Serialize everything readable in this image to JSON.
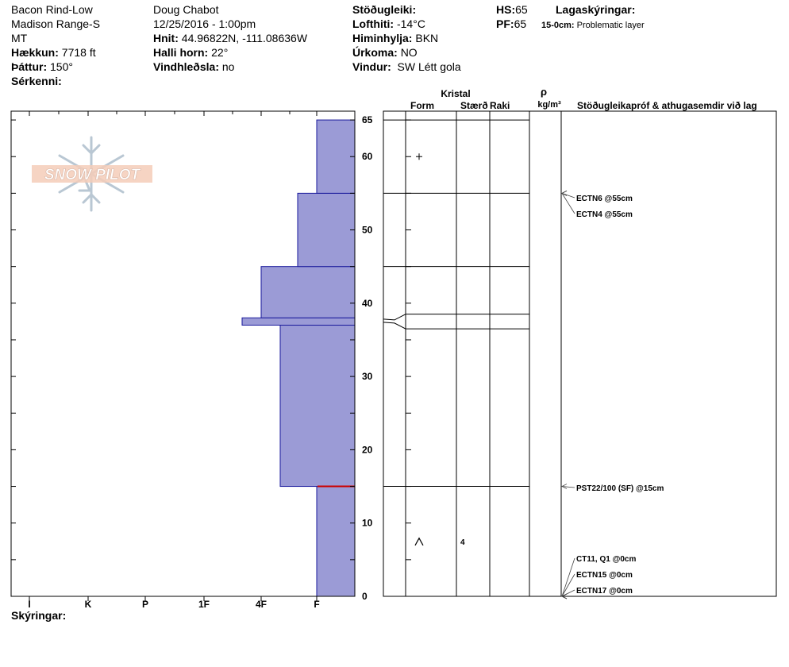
{
  "header": {
    "col1": {
      "location": "Bacon Rind-Low",
      "range": "Madison Range-S",
      "state": "MT",
      "elevation_label": "Hækkun:",
      "elevation_value": "7718 ft",
      "aspect_label": "Þáttur:",
      "aspect_value": "150°",
      "features_label": "Sérkenni:"
    },
    "col2": {
      "observer": "Doug Chabot",
      "datetime": "12/25/2016 - 1:00pm",
      "coords_label": "Hnit:",
      "coords_value": "44.96822N, -111.08636W",
      "slope_label": "Halli horn:",
      "slope_value": "22°",
      "wind_loading_label": "Vindhleðsla:",
      "wind_loading_value": "no"
    },
    "col3": {
      "stability_label": "Stöðugleiki:",
      "air_temp_label": "Lofthiti:",
      "air_temp_value": "-14°C",
      "sky_label": "Himinhylja:",
      "sky_value": "BKN",
      "precip_label": "Úrkoma:",
      "precip_value": "NO",
      "wind_label": "Vindur:",
      "wind_value": "SW Létt gola"
    },
    "col4": {
      "hs_label": "HS:",
      "hs_value": "65",
      "pf_label": "PF:",
      "pf_value": "65",
      "layers_label": "Lagaskýringar:",
      "layer_note_depth": "15-0cm:",
      "layer_note_text": "Problematic layer"
    }
  },
  "footer": {
    "legend_label": "Skýringar:"
  },
  "logo": {
    "text": "SNOW PILOT"
  },
  "columns": {
    "crystal": "Kristal",
    "form": "Form",
    "size": "Stærð",
    "moisture": "Raki",
    "rho": "ρ",
    "density_unit": "kg/m³",
    "tests": "Stöðugleikapróf & athugasemdir við lag"
  },
  "chart_data": {
    "type": "bar",
    "title": "",
    "y_axis": {
      "range": [
        0,
        65
      ],
      "major_ticks": [
        0,
        10,
        20,
        30,
        40,
        50,
        60,
        65
      ]
    },
    "x_axis": {
      "categories": [
        "I",
        "K",
        "P",
        "1F",
        "4F",
        "F"
      ],
      "direction": "hardness increases to the left"
    },
    "hardness_profile": [
      {
        "bottom": 0,
        "top": 15,
        "hardness": "F"
      },
      {
        "bottom": 15,
        "top": 37,
        "hardness": "4F-"
      },
      {
        "bottom": 37,
        "top": 38,
        "hardness": "4F+"
      },
      {
        "bottom": 38,
        "top": 45,
        "hardness": "4F"
      },
      {
        "bottom": 45,
        "top": 55,
        "hardness": "F+"
      },
      {
        "bottom": 55,
        "top": 65,
        "hardness": "F"
      }
    ],
    "layer_boundaries": [
      65,
      55,
      45,
      38.5,
      36.5,
      15
    ],
    "problem_layer_depth": 15,
    "layer_symbols": [
      {
        "depth": 60,
        "form": "+",
        "size": ""
      },
      {
        "depth": 7.5,
        "form": "^",
        "size": "4"
      }
    ],
    "tests": [
      {
        "depth": 55,
        "label": "ECTN6 @55cm"
      },
      {
        "depth": 55,
        "label": "ECTN4 @55cm"
      },
      {
        "depth": 15,
        "label": "PST22/100 (SF) @15cm"
      },
      {
        "depth": 0,
        "label": "CT11, Q1 @0cm"
      },
      {
        "depth": 0,
        "label": "ECTN15 @0cm"
      },
      {
        "depth": 0,
        "label": "ECTN17 @0cm"
      }
    ],
    "colors": {
      "profile_fill": "#9b9bd6",
      "profile_stroke": "#1a1a9c",
      "problem_line": "#cc0000"
    }
  }
}
